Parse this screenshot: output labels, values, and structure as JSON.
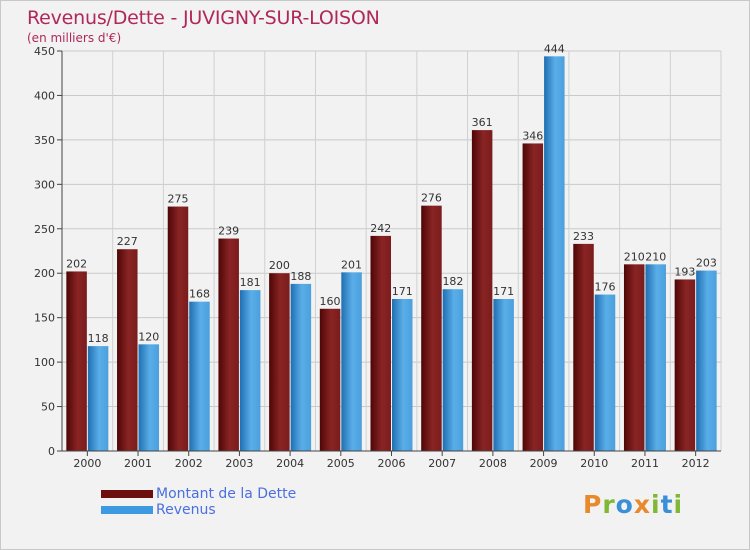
{
  "header": {
    "title": "Revenus/Dette - JUVIGNY-SUR-LOISON",
    "subtitle": "(en milliers d'€)"
  },
  "chart_data": {
    "type": "bar",
    "title": "Revenus/Dette - JUVIGNY-SUR-LOISON",
    "ylabel": "(en milliers d'€)",
    "xlabel": "",
    "categories": [
      "2000",
      "2001",
      "2002",
      "2003",
      "2004",
      "2005",
      "2006",
      "2007",
      "2008",
      "2009",
      "2010",
      "2011",
      "2012"
    ],
    "series": [
      {
        "name": "Montant de la Dette",
        "color": "#7a1a1a",
        "values": [
          202,
          227,
          275,
          239,
          200,
          160,
          242,
          276,
          361,
          346,
          233,
          210,
          193
        ]
      },
      {
        "name": "Revenus",
        "color": "#3a90d4",
        "values": [
          118,
          120,
          168,
          181,
          188,
          201,
          171,
          182,
          171,
          444,
          176,
          210,
          203
        ]
      }
    ],
    "ylim": [
      0,
      450
    ],
    "yticks": [
      0,
      50,
      100,
      150,
      200,
      250,
      300,
      350,
      400,
      450
    ],
    "grid": true,
    "legend": "bottom-left"
  },
  "legend": {
    "items": [
      {
        "label": "Montant de la Dette",
        "color": "#6e0f0f"
      },
      {
        "label": "Revenus",
        "color": "#3d99e0"
      }
    ]
  },
  "logo": {
    "letters": [
      "P",
      "r",
      "o",
      "x",
      "i",
      "t",
      "i"
    ],
    "colors": [
      "#e8892b",
      "#7fb832",
      "#3a8fd6",
      "#e8892b",
      "#7fb832",
      "#3a8fd6",
      "#7fb832"
    ]
  }
}
